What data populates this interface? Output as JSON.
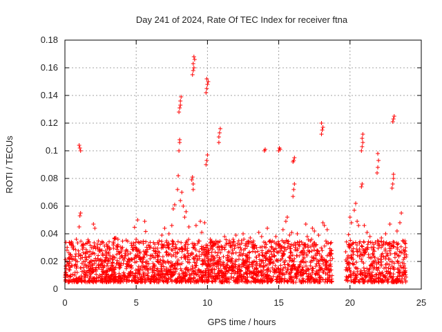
{
  "chart_data": {
    "type": "scatter",
    "title": "Day 241 of 2024, Rate Of TEC Index for receiver ftna",
    "xlabel": "GPS time / hours",
    "ylabel": "ROTI / TECUs",
    "xlim": [
      0,
      25
    ],
    "ylim": [
      0,
      0.18
    ],
    "xticks": [
      0,
      5,
      10,
      15,
      20,
      25
    ],
    "yticks": [
      0,
      0.02,
      0.04,
      0.06,
      0.08,
      0.1,
      0.12,
      0.14,
      0.16,
      0.18
    ],
    "xtick_labels": [
      "0",
      "5",
      "10",
      "15",
      "20",
      "25"
    ],
    "ytick_labels": [
      "0",
      "0.02",
      "0.04",
      "0.06",
      "0.08",
      "0.1",
      "0.12",
      "0.14",
      "0.16",
      "0.18"
    ],
    "grid": true,
    "marker": "+",
    "color": "#ff0000",
    "data_gap_hours": [
      18.8,
      19.7
    ],
    "series": [
      {
        "name": "ROTI",
        "points": [
          [
            0.05,
            0.012
          ],
          [
            0.2,
            0.018
          ],
          [
            0.4,
            0.025
          ],
          [
            0.6,
            0.031
          ],
          [
            0.8,
            0.036
          ],
          [
            1.0,
            0.045
          ],
          [
            1.05,
            0.053
          ],
          [
            1.1,
            0.055
          ],
          [
            1.0,
            0.104
          ],
          [
            1.05,
            0.102
          ],
          [
            1.1,
            0.1
          ],
          [
            1.3,
            0.03
          ],
          [
            1.5,
            0.027
          ],
          [
            1.7,
            0.034
          ],
          [
            2.0,
            0.047
          ],
          [
            2.1,
            0.044
          ],
          [
            2.3,
            0.022
          ],
          [
            2.6,
            0.028
          ],
          [
            3.0,
            0.021
          ],
          [
            3.4,
            0.034
          ],
          [
            3.5,
            0.037
          ],
          [
            3.8,
            0.019
          ],
          [
            4.2,
            0.024
          ],
          [
            4.6,
            0.026
          ],
          [
            5.0,
            0.036
          ],
          [
            5.1,
            0.05
          ],
          [
            5.5,
            0.033
          ],
          [
            5.6,
            0.049
          ],
          [
            6.0,
            0.03
          ],
          [
            6.4,
            0.027
          ],
          [
            6.8,
            0.039
          ],
          [
            7.0,
            0.044
          ],
          [
            7.3,
            0.04
          ],
          [
            7.5,
            0.046
          ],
          [
            7.6,
            0.058
          ],
          [
            7.7,
            0.061
          ],
          [
            7.9,
            0.072
          ],
          [
            7.95,
            0.082
          ],
          [
            8.0,
            0.1
          ],
          [
            8.05,
            0.106
          ],
          [
            8.05,
            0.108
          ],
          [
            8.0,
            0.128
          ],
          [
            8.05,
            0.131
          ],
          [
            8.1,
            0.133
          ],
          [
            8.1,
            0.136
          ],
          [
            8.15,
            0.139
          ],
          [
            8.1,
            0.064
          ],
          [
            8.2,
            0.07
          ],
          [
            8.3,
            0.06
          ],
          [
            8.4,
            0.052
          ],
          [
            8.5,
            0.056
          ],
          [
            8.7,
            0.045
          ],
          [
            8.9,
            0.079
          ],
          [
            8.95,
            0.081
          ],
          [
            9.0,
            0.072
          ],
          [
            9.0,
            0.076
          ],
          [
            8.95,
            0.155
          ],
          [
            9.0,
            0.158
          ],
          [
            9.05,
            0.16
          ],
          [
            9.0,
            0.163
          ],
          [
            9.1,
            0.166
          ],
          [
            9.05,
            0.168
          ],
          [
            9.2,
            0.046
          ],
          [
            9.5,
            0.049
          ],
          [
            9.6,
            0.041
          ],
          [
            9.8,
            0.048
          ],
          [
            9.9,
            0.09
          ],
          [
            9.95,
            0.093
          ],
          [
            10.0,
            0.097
          ],
          [
            9.9,
            0.142
          ],
          [
            9.95,
            0.145
          ],
          [
            10.0,
            0.148
          ],
          [
            10.05,
            0.15
          ],
          [
            9.95,
            0.152
          ],
          [
            10.2,
            0.036
          ],
          [
            10.5,
            0.033
          ],
          [
            10.8,
            0.11
          ],
          [
            10.85,
            0.113
          ],
          [
            10.9,
            0.116
          ],
          [
            10.8,
            0.106
          ],
          [
            11.0,
            0.03
          ],
          [
            11.2,
            0.038
          ],
          [
            11.5,
            0.027
          ],
          [
            11.8,
            0.036
          ],
          [
            12.0,
            0.039
          ],
          [
            12.2,
            0.035
          ],
          [
            12.5,
            0.04
          ],
          [
            12.7,
            0.033
          ],
          [
            13.0,
            0.037
          ],
          [
            13.3,
            0.03
          ],
          [
            13.6,
            0.041
          ],
          [
            13.8,
            0.038
          ],
          [
            14.0,
            0.1
          ],
          [
            14.05,
            0.101
          ],
          [
            14.2,
            0.044
          ],
          [
            14.4,
            0.035
          ],
          [
            14.6,
            0.029
          ],
          [
            14.8,
            0.038
          ],
          [
            15.0,
            0.1
          ],
          [
            15.05,
            0.102
          ],
          [
            15.1,
            0.101
          ],
          [
            15.3,
            0.043
          ],
          [
            15.5,
            0.049
          ],
          [
            15.6,
            0.052
          ],
          [
            15.8,
            0.031
          ],
          [
            16.0,
            0.067
          ],
          [
            16.05,
            0.072
          ],
          [
            16.1,
            0.076
          ],
          [
            16.05,
            0.093
          ],
          [
            16.1,
            0.095
          ],
          [
            16.0,
            0.092
          ],
          [
            16.3,
            0.04
          ],
          [
            16.6,
            0.034
          ],
          [
            16.9,
            0.047
          ],
          [
            17.0,
            0.038
          ],
          [
            17.3,
            0.036
          ],
          [
            17.5,
            0.042
          ],
          [
            17.8,
            0.039
          ],
          [
            18.0,
            0.112
          ],
          [
            18.05,
            0.115
          ],
          [
            18.1,
            0.117
          ],
          [
            18.0,
            0.12
          ],
          [
            18.1,
            0.048
          ],
          [
            18.2,
            0.046
          ],
          [
            18.4,
            0.043
          ],
          [
            18.7,
            0.028
          ],
          [
            19.7,
            0.027
          ],
          [
            19.9,
            0.032
          ],
          [
            20.0,
            0.052
          ],
          [
            20.1,
            0.048
          ],
          [
            20.3,
            0.057
          ],
          [
            20.4,
            0.062
          ],
          [
            20.5,
            0.049
          ],
          [
            20.6,
            0.046
          ],
          [
            20.8,
            0.1
          ],
          [
            20.85,
            0.103
          ],
          [
            20.9,
            0.106
          ],
          [
            20.85,
            0.109
          ],
          [
            20.9,
            0.112
          ],
          [
            20.8,
            0.074
          ],
          [
            20.85,
            0.076
          ],
          [
            21.0,
            0.046
          ],
          [
            21.2,
            0.041
          ],
          [
            21.4,
            0.038
          ],
          [
            21.6,
            0.03
          ],
          [
            21.9,
            0.084
          ],
          [
            21.95,
            0.088
          ],
          [
            22.0,
            0.093
          ],
          [
            21.95,
            0.098
          ],
          [
            22.2,
            0.037
          ],
          [
            22.5,
            0.04
          ],
          [
            22.8,
            0.047
          ],
          [
            22.95,
            0.073
          ],
          [
            23.0,
            0.076
          ],
          [
            23.05,
            0.08
          ],
          [
            23.05,
            0.083
          ],
          [
            23.0,
            0.121
          ],
          [
            23.05,
            0.123
          ],
          [
            23.1,
            0.125
          ],
          [
            23.3,
            0.042
          ],
          [
            23.5,
            0.048
          ],
          [
            23.6,
            0.055
          ],
          [
            23.7,
            0.035
          ],
          [
            23.9,
            0.03
          ]
        ]
      }
    ]
  }
}
